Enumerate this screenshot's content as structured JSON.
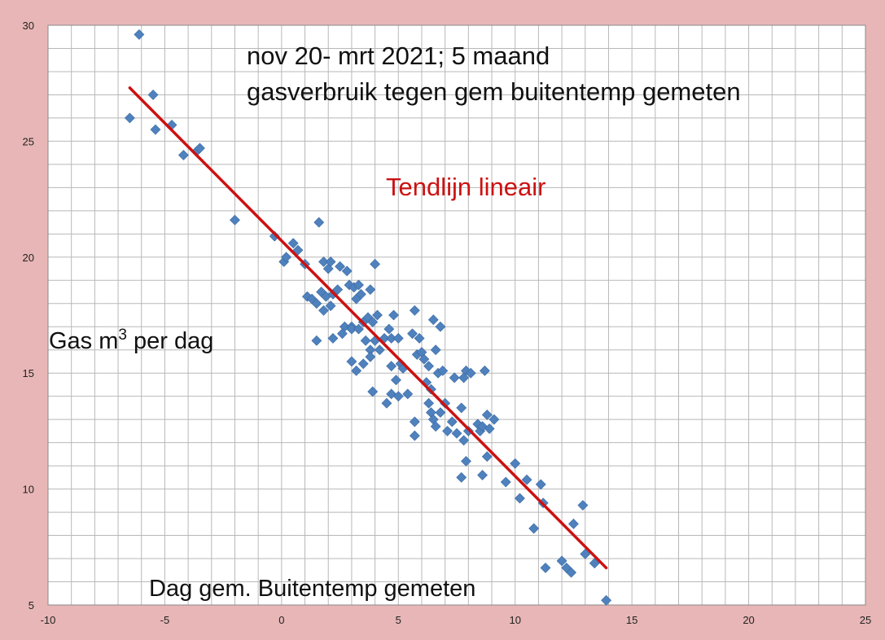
{
  "chart_data": {
    "type": "scatter",
    "title_lines": [
      "nov 20- mrt 2021; 5 maand",
      "gasverbruik tegen gem buitentemp gemeten"
    ],
    "trendline_label": "Tendlijn lineair",
    "ylabel_main": "Gas m",
    "ylabel_sup": "3",
    "ylabel_rest": " per dag",
    "xlabel": "Dag gem. Buitentemp gemeten",
    "xlim": [
      -10,
      25
    ],
    "ylim": [
      5,
      30
    ],
    "x_ticks": [
      "-10",
      "-5",
      "0",
      "5",
      "10",
      "15",
      "20",
      "25"
    ],
    "y_ticks": [
      "5",
      "10",
      "15",
      "20",
      "25",
      "30"
    ],
    "grid": true,
    "colors": {
      "frame": "#e8b6b6",
      "plot_area": "#ffffff",
      "grid": "#b8b8b8",
      "marker": "#4f81bd",
      "trendline": "#cc1111",
      "trendline_label": "#cc1111"
    },
    "trendline": {
      "x": [
        -6.5,
        13.9
      ],
      "y": [
        27.3,
        6.6
      ]
    },
    "points": [
      [
        -6.1,
        29.6
      ],
      [
        -6.5,
        26.0
      ],
      [
        -5.5,
        27.0
      ],
      [
        -5.4,
        25.5
      ],
      [
        -4.7,
        25.7
      ],
      [
        -4.2,
        24.4
      ],
      [
        -3.6,
        24.6
      ],
      [
        -3.5,
        24.7
      ],
      [
        -2.0,
        21.6
      ],
      [
        -0.3,
        20.9
      ],
      [
        0.1,
        19.8
      ],
      [
        0.2,
        20.0
      ],
      [
        0.5,
        20.6
      ],
      [
        0.7,
        20.3
      ],
      [
        1.0,
        19.7
      ],
      [
        1.1,
        18.3
      ],
      [
        1.3,
        18.2
      ],
      [
        1.5,
        18.0
      ],
      [
        1.6,
        21.5
      ],
      [
        1.7,
        18.5
      ],
      [
        1.8,
        17.7
      ],
      [
        1.8,
        19.8
      ],
      [
        1.9,
        18.3
      ],
      [
        2.0,
        19.5
      ],
      [
        2.1,
        19.8
      ],
      [
        2.1,
        17.9
      ],
      [
        2.2,
        18.4
      ],
      [
        2.4,
        18.6
      ],
      [
        2.5,
        19.6
      ],
      [
        2.7,
        17.0
      ],
      [
        2.8,
        19.4
      ],
      [
        2.9,
        18.8
      ],
      [
        3.0,
        17.0
      ],
      [
        3.1,
        18.7
      ],
      [
        3.2,
        18.2
      ],
      [
        3.3,
        18.8
      ],
      [
        3.4,
        18.4
      ],
      [
        3.5,
        17.2
      ],
      [
        3.7,
        17.4
      ],
      [
        3.8,
        18.6
      ],
      [
        3.9,
        17.2
      ],
      [
        4.0,
        19.7
      ],
      [
        4.1,
        17.5
      ],
      [
        1.5,
        16.4
      ],
      [
        2.2,
        16.5
      ],
      [
        2.6,
        16.7
      ],
      [
        3.0,
        16.9
      ],
      [
        3.3,
        16.9
      ],
      [
        3.6,
        16.4
      ],
      [
        3.8,
        16.0
      ],
      [
        4.0,
        16.4
      ],
      [
        4.2,
        16.0
      ],
      [
        3.0,
        15.5
      ],
      [
        3.2,
        15.1
      ],
      [
        3.5,
        15.4
      ],
      [
        3.8,
        15.7
      ],
      [
        3.9,
        14.2
      ],
      [
        4.4,
        16.5
      ],
      [
        4.6,
        16.9
      ],
      [
        4.7,
        16.5
      ],
      [
        4.8,
        17.5
      ],
      [
        5.0,
        16.5
      ],
      [
        5.1,
        15.4
      ],
      [
        4.7,
        15.3
      ],
      [
        4.9,
        14.7
      ],
      [
        5.2,
        15.2
      ],
      [
        4.5,
        13.7
      ],
      [
        4.7,
        14.1
      ],
      [
        5.0,
        14.0
      ],
      [
        5.4,
        14.1
      ],
      [
        5.6,
        16.7
      ],
      [
        5.7,
        17.7
      ],
      [
        5.8,
        15.8
      ],
      [
        5.9,
        16.5
      ],
      [
        6.0,
        15.9
      ],
      [
        6.1,
        15.6
      ],
      [
        6.2,
        14.6
      ],
      [
        6.3,
        15.3
      ],
      [
        6.5,
        17.3
      ],
      [
        6.6,
        16.0
      ],
      [
        6.7,
        15.0
      ],
      [
        6.8,
        17.0
      ],
      [
        6.9,
        15.1
      ],
      [
        6.4,
        14.3
      ],
      [
        5.7,
        12.9
      ],
      [
        5.7,
        12.3
      ],
      [
        6.3,
        13.7
      ],
      [
        6.4,
        13.3
      ],
      [
        6.5,
        13.0
      ],
      [
        6.6,
        12.7
      ],
      [
        6.8,
        13.3
      ],
      [
        7.0,
        13.7
      ],
      [
        7.1,
        12.5
      ],
      [
        7.3,
        12.9
      ],
      [
        7.4,
        14.8
      ],
      [
        7.5,
        12.4
      ],
      [
        7.7,
        13.5
      ],
      [
        7.8,
        12.1
      ],
      [
        7.8,
        14.8
      ],
      [
        7.9,
        15.1
      ],
      [
        8.0,
        12.5
      ],
      [
        8.1,
        15.0
      ],
      [
        8.4,
        12.8
      ],
      [
        8.5,
        12.5
      ],
      [
        8.6,
        12.7
      ],
      [
        8.7,
        15.1
      ],
      [
        8.8,
        13.2
      ],
      [
        8.9,
        12.6
      ],
      [
        7.7,
        10.5
      ],
      [
        7.9,
        11.2
      ],
      [
        8.6,
        10.6
      ],
      [
        8.8,
        11.4
      ],
      [
        9.1,
        13.0
      ],
      [
        9.6,
        10.3
      ],
      [
        10.0,
        11.1
      ],
      [
        10.2,
        9.6
      ],
      [
        10.5,
        10.4
      ],
      [
        10.8,
        8.3
      ],
      [
        11.1,
        10.2
      ],
      [
        11.2,
        9.4
      ],
      [
        11.3,
        6.6
      ],
      [
        12.0,
        6.9
      ],
      [
        12.2,
        6.6
      ],
      [
        12.4,
        6.4
      ],
      [
        12.5,
        8.5
      ],
      [
        12.9,
        9.3
      ],
      [
        13.0,
        7.2
      ],
      [
        13.4,
        6.8
      ],
      [
        13.9,
        5.2
      ]
    ]
  }
}
